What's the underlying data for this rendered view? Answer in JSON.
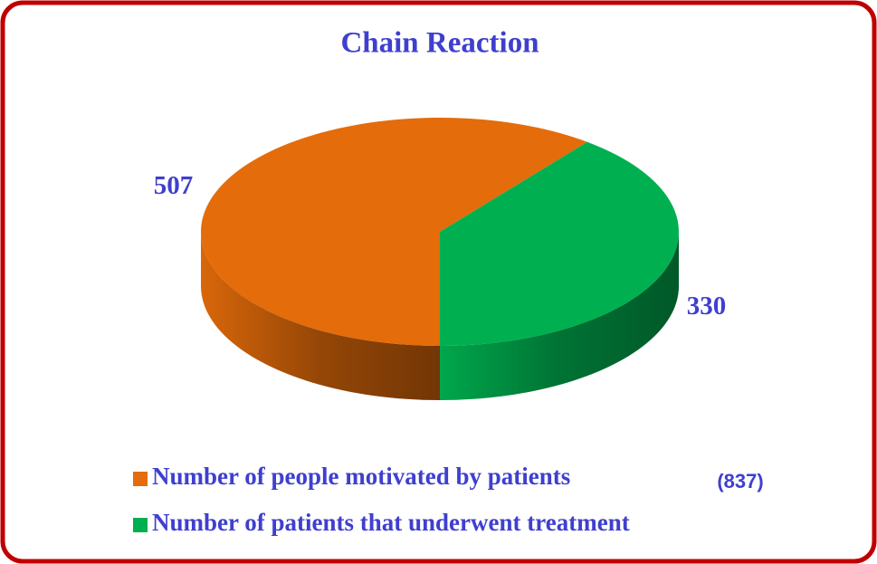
{
  "chart_data": {
    "type": "pie",
    "title": "Chain Reaction",
    "categories": [
      "Number of people motivated by patients",
      "Number of patients that underwent treatment"
    ],
    "values": [
      507,
      330
    ],
    "colors": [
      "#e46c0a",
      "#00b050"
    ],
    "annotation": "(837)"
  }
}
